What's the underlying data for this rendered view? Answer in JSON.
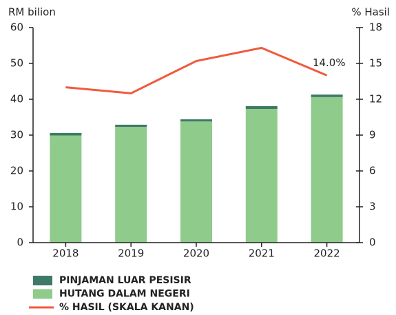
{
  "chart_data": {
    "type": "bar",
    "y_label": "RM bilion",
    "y2_label": "% Hasil",
    "categories": [
      "2018",
      "2019",
      "2020",
      "2021",
      "2022"
    ],
    "series": [
      {
        "name": "HUTANG DALAM NEGERI",
        "color": "#8fcb8a",
        "type": "bar",
        "values": [
          29.9,
          32.3,
          33.8,
          37.3,
          40.6
        ]
      },
      {
        "name": "PINJAMAN LUAR PESISIR",
        "color": "#3e7a68",
        "type": "bar",
        "values": [
          0.7,
          0.6,
          0.6,
          0.8,
          0.7
        ]
      },
      {
        "name": "% HASIL (SKALA KANAN)",
        "color": "#f05a3c",
        "type": "line",
        "axis": "y2",
        "values": [
          13.0,
          12.5,
          15.2,
          16.3,
          14.0
        ],
        "value_labels": [
          null,
          null,
          null,
          null,
          "14.0%"
        ]
      }
    ],
    "stacked": true,
    "ylim": [
      0,
      60
    ],
    "yticks": [
      0,
      10,
      20,
      30,
      40,
      50,
      60
    ],
    "y2lim": [
      0,
      18
    ],
    "y2ticks": [
      0,
      3,
      6,
      9,
      12,
      15,
      18
    ],
    "grid": false,
    "legend": "bottom"
  }
}
